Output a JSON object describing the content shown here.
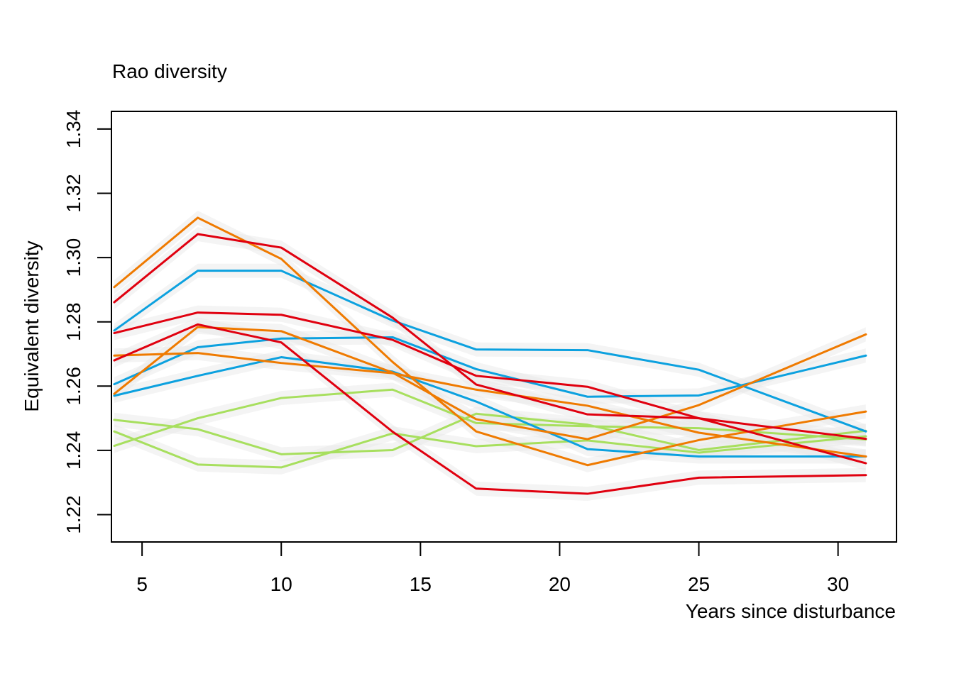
{
  "chart_data": {
    "type": "line",
    "title": "Rao diversity",
    "xlabel": "Years since disturbance",
    "ylabel": "Equivalent diversity",
    "xlim": [
      3.9,
      32.1
    ],
    "ylim": [
      1.2115,
      1.3455
    ],
    "x_ticks": [
      "5",
      "10",
      "15",
      "20",
      "25",
      "30"
    ],
    "y_ticks": [
      "1.22",
      "1.24",
      "1.26",
      "1.28",
      "1.30",
      "1.32",
      "1.34"
    ],
    "x": [
      4,
      7,
      10,
      14,
      17,
      21,
      25,
      31
    ],
    "colors": {
      "red": "#e0000f",
      "orange": "#ef7a00",
      "blue": "#0ca1df",
      "green": "#a7df5e",
      "band": "#e6e6e6"
    },
    "series": [
      {
        "color": "green",
        "values": [
          1.2495,
          1.2466,
          1.2388,
          1.2401,
          1.2514,
          1.248,
          1.2401,
          1.2461
        ]
      },
      {
        "color": "green",
        "values": [
          1.2459,
          1.2356,
          1.2347,
          1.2453,
          1.2413,
          1.2431,
          1.2393,
          1.2444
        ]
      },
      {
        "color": "green",
        "values": [
          1.2414,
          1.25,
          1.2563,
          1.2589,
          1.2485,
          1.2475,
          1.2469,
          1.2434
        ]
      },
      {
        "color": "blue",
        "values": [
          1.257,
          1.2632,
          1.269,
          1.2645,
          1.2552,
          1.2404,
          1.2381,
          1.2381
        ]
      },
      {
        "color": "blue",
        "values": [
          1.2606,
          1.2721,
          1.2748,
          1.2752,
          1.2653,
          1.2567,
          1.2571,
          1.2695
        ]
      },
      {
        "color": "blue",
        "values": [
          1.2773,
          1.2959,
          1.2959,
          1.2804,
          1.2714,
          1.2712,
          1.2651,
          1.2459
        ]
      },
      {
        "color": "orange",
        "values": [
          1.2576,
          1.2784,
          1.2771,
          1.2642,
          1.2497,
          1.2435,
          1.2541,
          1.2761
        ]
      },
      {
        "color": "orange",
        "values": [
          1.2695,
          1.2703,
          1.2672,
          1.264,
          1.2589,
          1.2539,
          1.2455,
          1.2381
        ]
      },
      {
        "color": "orange",
        "values": [
          1.2908,
          1.3124,
          1.2996,
          1.2675,
          1.2459,
          1.2354,
          1.2432,
          1.2521
        ]
      },
      {
        "color": "red",
        "values": [
          1.268,
          1.2792,
          1.2736,
          1.2458,
          1.2281,
          1.2265,
          1.2315,
          1.2323
        ]
      },
      {
        "color": "red",
        "values": [
          1.2765,
          1.2829,
          1.2822,
          1.2744,
          1.2632,
          1.2598,
          1.25,
          1.2436
        ]
      },
      {
        "color": "red",
        "values": [
          1.2861,
          1.3073,
          1.3031,
          1.2813,
          1.2605,
          1.2512,
          1.25,
          1.236
        ]
      }
    ]
  }
}
